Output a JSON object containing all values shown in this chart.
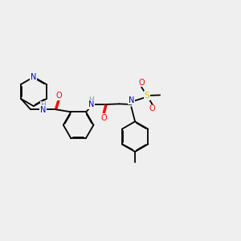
{
  "bg_color": "#efefef",
  "atom_colors": {
    "N": "#0000cd",
    "O": "#ff0000",
    "S": "#cccc00",
    "C": "#000000",
    "H": "#5f9ea0"
  },
  "bond_color": "#000000",
  "bond_width": 1.3
}
